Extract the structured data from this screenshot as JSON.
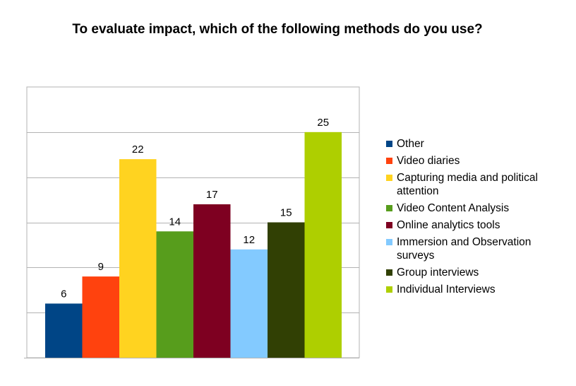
{
  "chart_data": {
    "type": "bar",
    "title": "To evaluate impact, which of the following methods do you use?",
    "xlabel": "",
    "ylabel": "",
    "ylim": [
      0,
      30
    ],
    "grid": true,
    "legend_position": "right",
    "series": [
      {
        "name": "Other",
        "value": 6,
        "color": "#004586"
      },
      {
        "name": "Video diaries",
        "value": 9,
        "color": "#ff420e"
      },
      {
        "name": "Capturing media and political attention",
        "value": 22,
        "color": "#ffd320"
      },
      {
        "name": "Video Content Analysis",
        "value": 14,
        "color": "#579d1c"
      },
      {
        "name": "Online analytics tools",
        "value": 17,
        "color": "#7e0021"
      },
      {
        "name": "Immersion and Observation surveys",
        "value": 12,
        "color": "#83caff"
      },
      {
        "name": "Group interviews",
        "value": 15,
        "color": "#314004"
      },
      {
        "name": "Individual Interviews",
        "value": 25,
        "color": "#aecf00"
      }
    ]
  }
}
